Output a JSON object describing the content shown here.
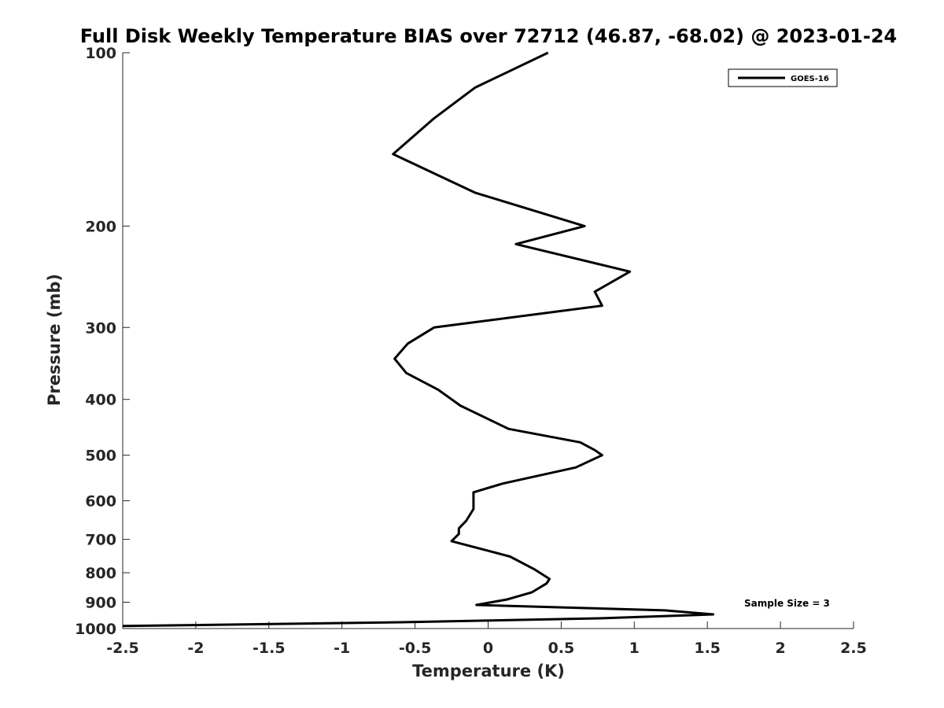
{
  "chart_data": {
    "type": "line",
    "title": "Full Disk Weekly Temperature BIAS over 72712 (46.87, -68.02) @ 2023-01-24",
    "xlabel": "Temperature (K)",
    "ylabel": "Pressure (mb)",
    "xlim": [
      -2.5,
      2.5
    ],
    "ylim": [
      1000,
      100
    ],
    "yscale": "log",
    "y_reversed": true,
    "x_ticks": [
      -2.5,
      -2,
      -1.5,
      -1,
      -0.5,
      0,
      0.5,
      1,
      1.5,
      2,
      2.5
    ],
    "x_tick_labels": [
      "-2.5",
      "-2",
      "-1.5",
      "-1",
      "-0.5",
      "0",
      "0.5",
      "1",
      "1.5",
      "2",
      "2.5"
    ],
    "y_ticks": [
      100,
      200,
      300,
      400,
      500,
      600,
      700,
      800,
      900,
      1000
    ],
    "y_tick_labels": [
      "100",
      "200",
      "300",
      "400",
      "500",
      "600",
      "700",
      "800",
      "900",
      "1000"
    ],
    "grid": false,
    "legend_position": "top-right",
    "series": [
      {
        "name": "GOES-16",
        "color": "#000000",
        "points": [
          [
            0.41,
            100
          ],
          [
            -0.09,
            115
          ],
          [
            -0.37,
            130
          ],
          [
            -0.65,
            150
          ],
          [
            -0.09,
            175
          ],
          [
            0.66,
            200
          ],
          [
            0.19,
            215
          ],
          [
            0.97,
            240
          ],
          [
            0.73,
            260
          ],
          [
            0.78,
            275
          ],
          [
            -0.37,
            300
          ],
          [
            -0.55,
            320
          ],
          [
            -0.64,
            340
          ],
          [
            -0.56,
            360
          ],
          [
            -0.34,
            385
          ],
          [
            -0.19,
            410
          ],
          [
            0.14,
            450
          ],
          [
            0.63,
            475
          ],
          [
            0.73,
            490
          ],
          [
            0.78,
            500
          ],
          [
            0.6,
            525
          ],
          [
            0.1,
            560
          ],
          [
            -0.1,
            580
          ],
          [
            -0.1,
            620
          ],
          [
            -0.15,
            650
          ],
          [
            -0.2,
            670
          ],
          [
            -0.2,
            685
          ],
          [
            -0.25,
            705
          ],
          [
            0.15,
            750
          ],
          [
            0.32,
            790
          ],
          [
            0.42,
            820
          ],
          [
            0.4,
            835
          ],
          [
            0.3,
            865
          ],
          [
            0.13,
            890
          ],
          [
            -0.08,
            910
          ],
          [
            1.21,
            930
          ],
          [
            1.54,
            945
          ],
          [
            0.76,
            960
          ],
          [
            -0.6,
            975
          ],
          [
            -2.5,
            990
          ]
        ]
      }
    ],
    "annotation": "Sample Size = 3"
  }
}
